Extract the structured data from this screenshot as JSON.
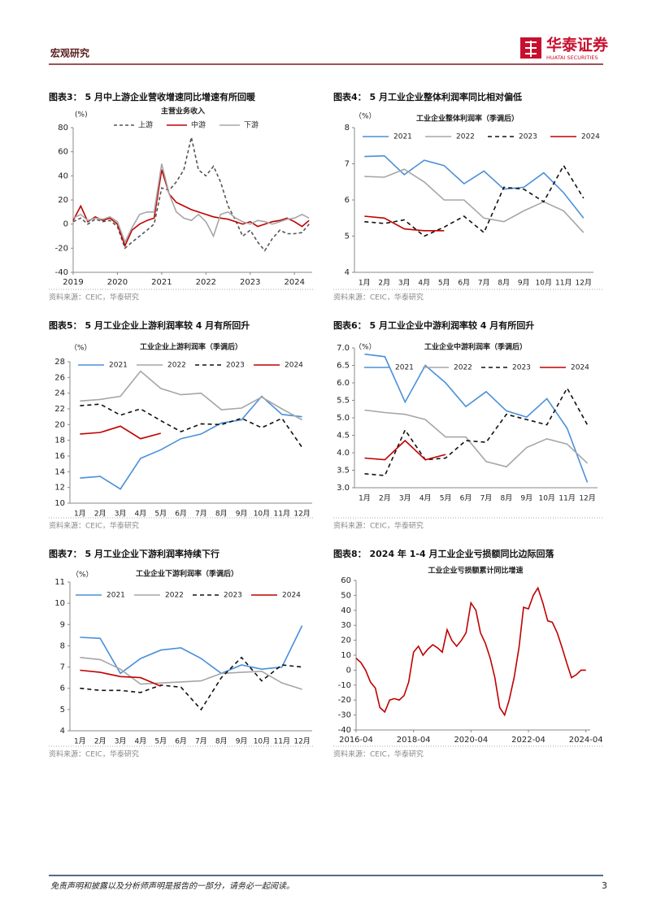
{
  "header": {
    "section": "宏观研究",
    "logo": "华泰证券",
    "logo_en": "HUATAI SECURITIES"
  },
  "chart_data": [
    {
      "type": "line",
      "caption": "图表3：  5 月中上游企业营收增速同比增速有所回暖",
      "title": "主营业务收入",
      "y_label": "(%)",
      "x": [
        2019,
        2019.17,
        2019.33,
        2019.5,
        2019.67,
        2019.83,
        2020,
        2020.17,
        2020.33,
        2020.5,
        2020.67,
        2020.83,
        2021,
        2021.17,
        2021.33,
        2021.5,
        2021.67,
        2021.83,
        2022,
        2022.17,
        2022.33,
        2022.5,
        2022.67,
        2022.83,
        2023,
        2023.17,
        2023.33,
        2023.5,
        2023.67,
        2023.83,
        2024,
        2024.17,
        2024.33
      ],
      "xlim": [
        2019,
        2024.4
      ],
      "xticks": [
        2019,
        2020,
        2021,
        2022,
        2023,
        2024
      ],
      "ylim": [
        -40,
        80
      ],
      "yticks": [
        -40,
        -20,
        0,
        20,
        40,
        60,
        80
      ],
      "series": [
        {
          "name": "上游",
          "color": "#555555",
          "dash": "4,3",
          "values": [
            2,
            5,
            0,
            4,
            2,
            3,
            -2,
            -20,
            -15,
            -10,
            -5,
            0,
            30,
            28,
            35,
            45,
            72,
            45,
            40,
            48,
            35,
            15,
            3,
            -10,
            -5,
            -15,
            -22,
            -12,
            -5,
            -8,
            -8,
            -7,
            0
          ]
        },
        {
          "name": "中游",
          "color": "#c00000",
          "values": [
            3,
            15,
            2,
            6,
            3,
            5,
            0,
            -18,
            -5,
            0,
            3,
            5,
            45,
            25,
            18,
            15,
            12,
            10,
            8,
            6,
            5,
            4,
            2,
            0,
            2,
            -2,
            0,
            2,
            3,
            5,
            2,
            -2,
            3
          ]
        },
        {
          "name": "下游",
          "color": "#a6a6a6",
          "values": [
            5,
            8,
            3,
            5,
            4,
            6,
            2,
            -15,
            -3,
            8,
            10,
            10,
            50,
            25,
            10,
            5,
            3,
            8,
            2,
            -10,
            8,
            10,
            5,
            2,
            0,
            3,
            2,
            0,
            2,
            4,
            5,
            8,
            5
          ]
        }
      ],
      "source": "资料来源：CEIC，华泰研究"
    },
    {
      "type": "line",
      "caption": "图表4：  5 月工业企业整体利润率同比相对偏低",
      "title": "工业企业整体利润率（季调后）",
      "y_label": "（%）",
      "categories": [
        "1月",
        "2月",
        "3月",
        "4月",
        "5月",
        "6月",
        "7月",
        "8月",
        "9月",
        "10月",
        "11月",
        "12月"
      ],
      "ylim": [
        4,
        8
      ],
      "yticks": [
        4,
        5,
        6,
        7,
        8
      ],
      "series": [
        {
          "name": "2021",
          "color": "#4a90d9",
          "values": [
            7.2,
            7.22,
            6.7,
            7.1,
            6.95,
            6.45,
            6.8,
            6.3,
            6.35,
            6.75,
            6.2,
            5.5
          ]
        },
        {
          "name": "2022",
          "color": "#a6a6a6",
          "values": [
            6.65,
            6.63,
            6.85,
            6.5,
            6.0,
            6.0,
            5.5,
            5.4,
            5.7,
            5.95,
            5.7,
            5.1
          ]
        },
        {
          "name": "2023",
          "color": "#111111",
          "dash": "5,4",
          "values": [
            5.4,
            5.35,
            5.45,
            5.0,
            5.25,
            5.55,
            5.1,
            6.35,
            6.3,
            5.95,
            6.95,
            6.05
          ]
        },
        {
          "name": "2024",
          "color": "#c00000",
          "values": [
            5.55,
            5.5,
            5.2,
            5.15,
            5.15,
            null,
            null,
            null,
            null,
            null,
            null,
            null
          ]
        }
      ],
      "source": "资料来源：CEIC，华泰研究"
    },
    {
      "type": "line",
      "caption": "图表5：  5 月工业企业上游利润率较 4 月有所回升",
      "title": "工业企业上游利润率（季调后）",
      "y_label": "（%）",
      "categories": [
        "1月",
        "2月",
        "3月",
        "4月",
        "5月",
        "6月",
        "7月",
        "8月",
        "9月",
        "10月",
        "11月",
        "12月"
      ],
      "ylim": [
        10,
        28
      ],
      "yticks": [
        10,
        12,
        14,
        16,
        18,
        20,
        22,
        24,
        26,
        28
      ],
      "series": [
        {
          "name": "2021",
          "color": "#4a90d9",
          "values": [
            13.2,
            13.4,
            11.8,
            15.7,
            16.8,
            18.2,
            18.8,
            20.2,
            20.6,
            23.6,
            21.3,
            21.0
          ]
        },
        {
          "name": "2022",
          "color": "#a6a6a6",
          "values": [
            23,
            23.2,
            23.6,
            26.8,
            24.6,
            23.8,
            24.0,
            21.9,
            22.1,
            23.5,
            22.0,
            20.6
          ]
        },
        {
          "name": "2023",
          "color": "#111111",
          "dash": "5,4",
          "values": [
            22.4,
            22.6,
            21.2,
            22.0,
            20.5,
            19.1,
            20.1,
            20.0,
            20.8,
            19.6,
            20.8,
            17.1
          ]
        },
        {
          "name": "2024",
          "color": "#c00000",
          "values": [
            18.8,
            19.0,
            19.8,
            18.2,
            18.9,
            null,
            null,
            null,
            null,
            null,
            null,
            null
          ]
        }
      ],
      "source": "资料来源：CEIC，华泰研究"
    },
    {
      "type": "line",
      "caption": "图表6：  5 月工业企业中游利润率较 4 月有所回升",
      "title": "工业企业中游利润率（季调后）",
      "y_label": "（%）",
      "categories": [
        "1月",
        "2月",
        "3月",
        "4月",
        "5月",
        "6月",
        "7月",
        "8月",
        "9月",
        "10月",
        "11月",
        "12月"
      ],
      "ylim": [
        3,
        7
      ],
      "yticks": [
        {
          "value": 3,
          "label": "3.0"
        },
        3.5,
        {
          "value": 4,
          "label": "4.0"
        },
        4.5,
        {
          "value": 5,
          "label": "5.0"
        },
        5.5,
        {
          "value": 6,
          "label": "6.0"
        },
        6.5,
        {
          "value": 7,
          "label": "7.0"
        }
      ],
      "series": [
        {
          "name": "2021",
          "color": "#4a90d9",
          "values": [
            6.82,
            6.75,
            5.45,
            6.5,
            6.0,
            5.32,
            5.75,
            5.2,
            5.02,
            5.55,
            4.7,
            3.15
          ]
        },
        {
          "name": "2022",
          "color": "#a6a6a6",
          "values": [
            5.22,
            5.15,
            5.1,
            4.95,
            4.45,
            4.45,
            3.75,
            3.6,
            4.15,
            4.4,
            4.25,
            3.7
          ]
        },
        {
          "name": "2023",
          "color": "#111111",
          "dash": "5,4",
          "values": [
            3.4,
            3.35,
            4.65,
            3.8,
            3.85,
            4.35,
            4.3,
            5.1,
            4.95,
            4.8,
            5.85,
            4.8
          ]
        },
        {
          "name": "2024",
          "color": "#c00000",
          "values": [
            3.85,
            3.8,
            4.35,
            3.8,
            3.95,
            null,
            null,
            null,
            null,
            null,
            null,
            null
          ]
        }
      ],
      "source": "资料来源：CEIC，华泰研究"
    },
    {
      "type": "line",
      "caption": "图表7：  5 月工业企业下游利润率持续下行",
      "title": "工业企业下游利润率（季调后）",
      "y_label": "（%）",
      "categories": [
        "1月",
        "2月",
        "3月",
        "4月",
        "5月",
        "6月",
        "7月",
        "8月",
        "9月",
        "10月",
        "11月",
        "12月"
      ],
      "ylim": [
        4,
        11
      ],
      "yticks": [
        4,
        5,
        6,
        7,
        8,
        9,
        10,
        11
      ],
      "series": [
        {
          "name": "2021",
          "color": "#4a90d9",
          "values": [
            8.4,
            8.35,
            6.7,
            7.4,
            7.8,
            7.9,
            7.4,
            6.7,
            7.1,
            6.9,
            7.0,
            8.95
          ]
        },
        {
          "name": "2022",
          "color": "#a6a6a6",
          "values": [
            7.45,
            7.35,
            6.9,
            6.2,
            6.25,
            6.3,
            6.35,
            6.7,
            6.75,
            6.8,
            6.25,
            5.95
          ]
        },
        {
          "name": "2023",
          "color": "#111111",
          "dash": "5,4",
          "values": [
            6.0,
            5.9,
            5.9,
            5.8,
            6.15,
            6.05,
            5.0,
            6.5,
            7.45,
            6.35,
            7.1,
            7.0
          ]
        },
        {
          "name": "2024",
          "color": "#c00000",
          "values": [
            6.85,
            6.75,
            6.55,
            6.5,
            6.1,
            null,
            null,
            null,
            null,
            null,
            null,
            null
          ]
        }
      ],
      "source": "资料来源：CEIC，华泰研究"
    },
    {
      "type": "line",
      "caption": "图表8：  2024 年 1-4 月工业企业亏损额同比边际回落",
      "title": "工业企业亏损额累计同比增速",
      "x": [
        2016.25,
        2016.42,
        2016.58,
        2016.75,
        2016.92,
        2017.08,
        2017.25,
        2017.42,
        2017.58,
        2017.75,
        2017.92,
        2018.08,
        2018.25,
        2018.42,
        2018.58,
        2018.75,
        2018.92,
        2019.08,
        2019.25,
        2019.42,
        2019.58,
        2019.75,
        2019.92,
        2020.08,
        2020.25,
        2020.42,
        2020.58,
        2020.75,
        2020.92,
        2021.08,
        2021.25,
        2021.42,
        2021.58,
        2021.75,
        2021.92,
        2022.08,
        2022.25,
        2022.42,
        2022.58,
        2022.75,
        2022.92,
        2023.08,
        2023.25,
        2023.42,
        2023.58,
        2023.75,
        2023.92,
        2024.08,
        2024.25
      ],
      "values": [
        8,
        5,
        0,
        -8,
        -12,
        -25,
        -28,
        -20,
        -19,
        -20,
        -17,
        -8,
        12,
        16,
        10,
        14,
        17,
        15,
        12,
        27,
        20,
        16,
        20,
        25,
        45,
        40,
        25,
        18,
        8,
        -5,
        -25,
        -30,
        -20,
        -5,
        15,
        42,
        41,
        50,
        55,
        45,
        33,
        32,
        25,
        15,
        5,
        -5,
        -3,
        0,
        0
      ],
      "color": "#c00000",
      "xlim": [
        2016.25,
        2024.4
      ],
      "xticks": [
        {
          "value": 2016.25,
          "label": "2016-04"
        },
        {
          "value": 2018.25,
          "label": "2018-04"
        },
        {
          "value": 2020.25,
          "label": "2020-04"
        },
        {
          "value": 2022.25,
          "label": "2022-04"
        },
        {
          "value": 2024.25,
          "label": "2024-04"
        }
      ],
      "ylim": [
        -40,
        60
      ],
      "yticks": [
        -40,
        -30,
        -20,
        -10,
        0,
        10,
        20,
        30,
        40,
        50,
        60
      ],
      "source": "资料来源：CEIC，华泰研究"
    }
  ],
  "footer": {
    "disclaimer": "免责声明和披露以及分析师声明是报告的一部分，请务必一起阅读。",
    "page": "3"
  }
}
